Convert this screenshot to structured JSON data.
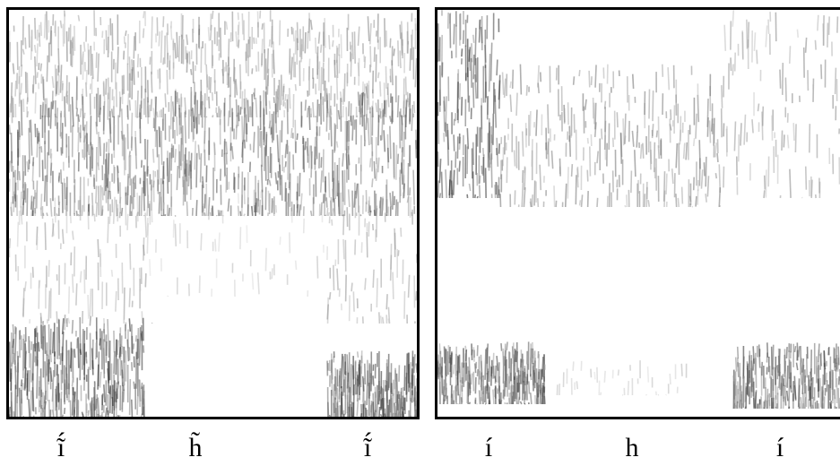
{
  "panels": [
    {
      "id": "left",
      "labels": [
        "ĩ́",
        "h̃",
        "ĩ́"
      ]
    },
    {
      "id": "right",
      "labels": [
        "í",
        "h",
        "í"
      ]
    }
  ]
}
